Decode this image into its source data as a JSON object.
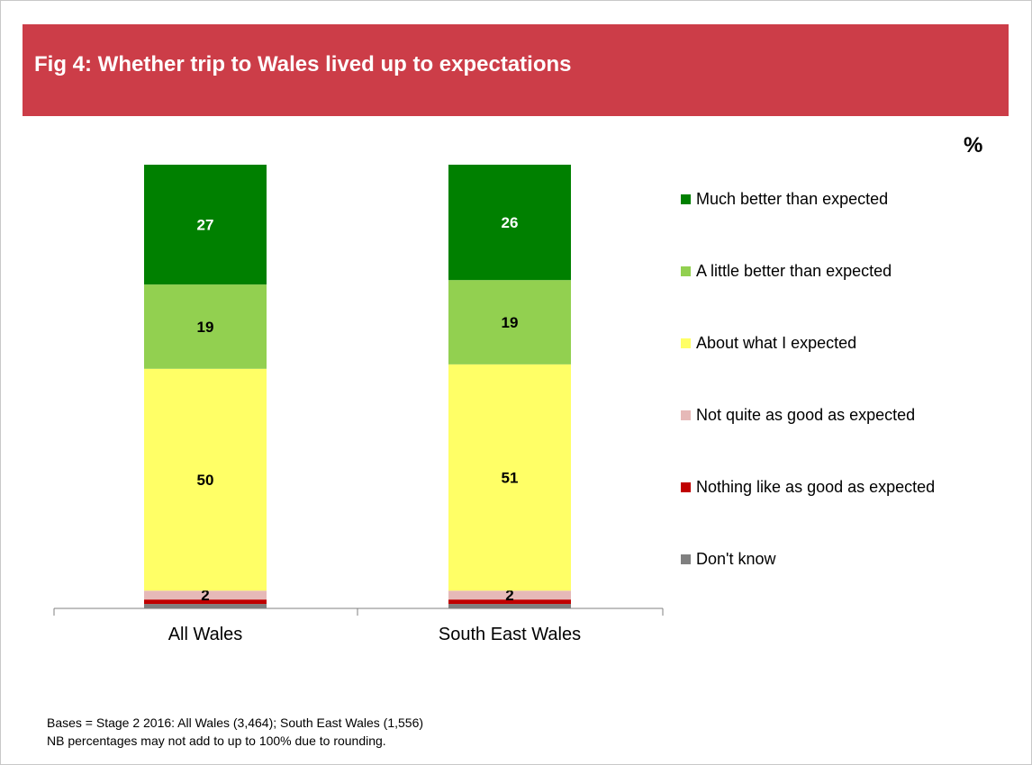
{
  "header": {
    "title": "Fig 4: Whether trip to Wales lived up to expectations"
  },
  "unit_label": "%",
  "chart_data": {
    "type": "bar",
    "stacked": true,
    "title": "Fig 4: Whether trip to Wales lived up to expectations",
    "categories": [
      "All Wales",
      "South East Wales"
    ],
    "ylim": [
      0,
      100
    ],
    "grid": false,
    "legend_position": "right",
    "series": [
      {
        "name": "Don't know",
        "values": [
          1,
          1
        ],
        "color": "#808080",
        "labels": [
          "",
          ""
        ]
      },
      {
        "name": "Nothing like as good as expected",
        "values": [
          1,
          1
        ],
        "color": "#c00000",
        "labels": [
          "",
          ""
        ]
      },
      {
        "name": "Not quite as good as expected",
        "values": [
          2,
          2
        ],
        "color": "#e6b9b8",
        "labels": [
          "2",
          "2"
        ]
      },
      {
        "name": "About what I expected",
        "values": [
          50,
          51
        ],
        "color": "#ffff66",
        "labels": [
          "50",
          "51"
        ]
      },
      {
        "name": "A little better than expected",
        "values": [
          19,
          19
        ],
        "color": "#92d050",
        "labels": [
          "19",
          "19"
        ]
      },
      {
        "name": "Much better than expected",
        "values": [
          27,
          26
        ],
        "color": "#008000",
        "labels": [
          "27",
          "26"
        ]
      }
    ],
    "legend_order": [
      "Much better than expected",
      "A little better than expected",
      "About what I expected",
      "Not quite as good as expected",
      "Nothing like as good as expected",
      "Don't know"
    ]
  },
  "footnote": {
    "line1": "Bases = Stage 2 2016: All Wales (3,464); South East Wales (1,556)",
    "line2": "NB percentages may not add to up to 100% due to rounding."
  }
}
